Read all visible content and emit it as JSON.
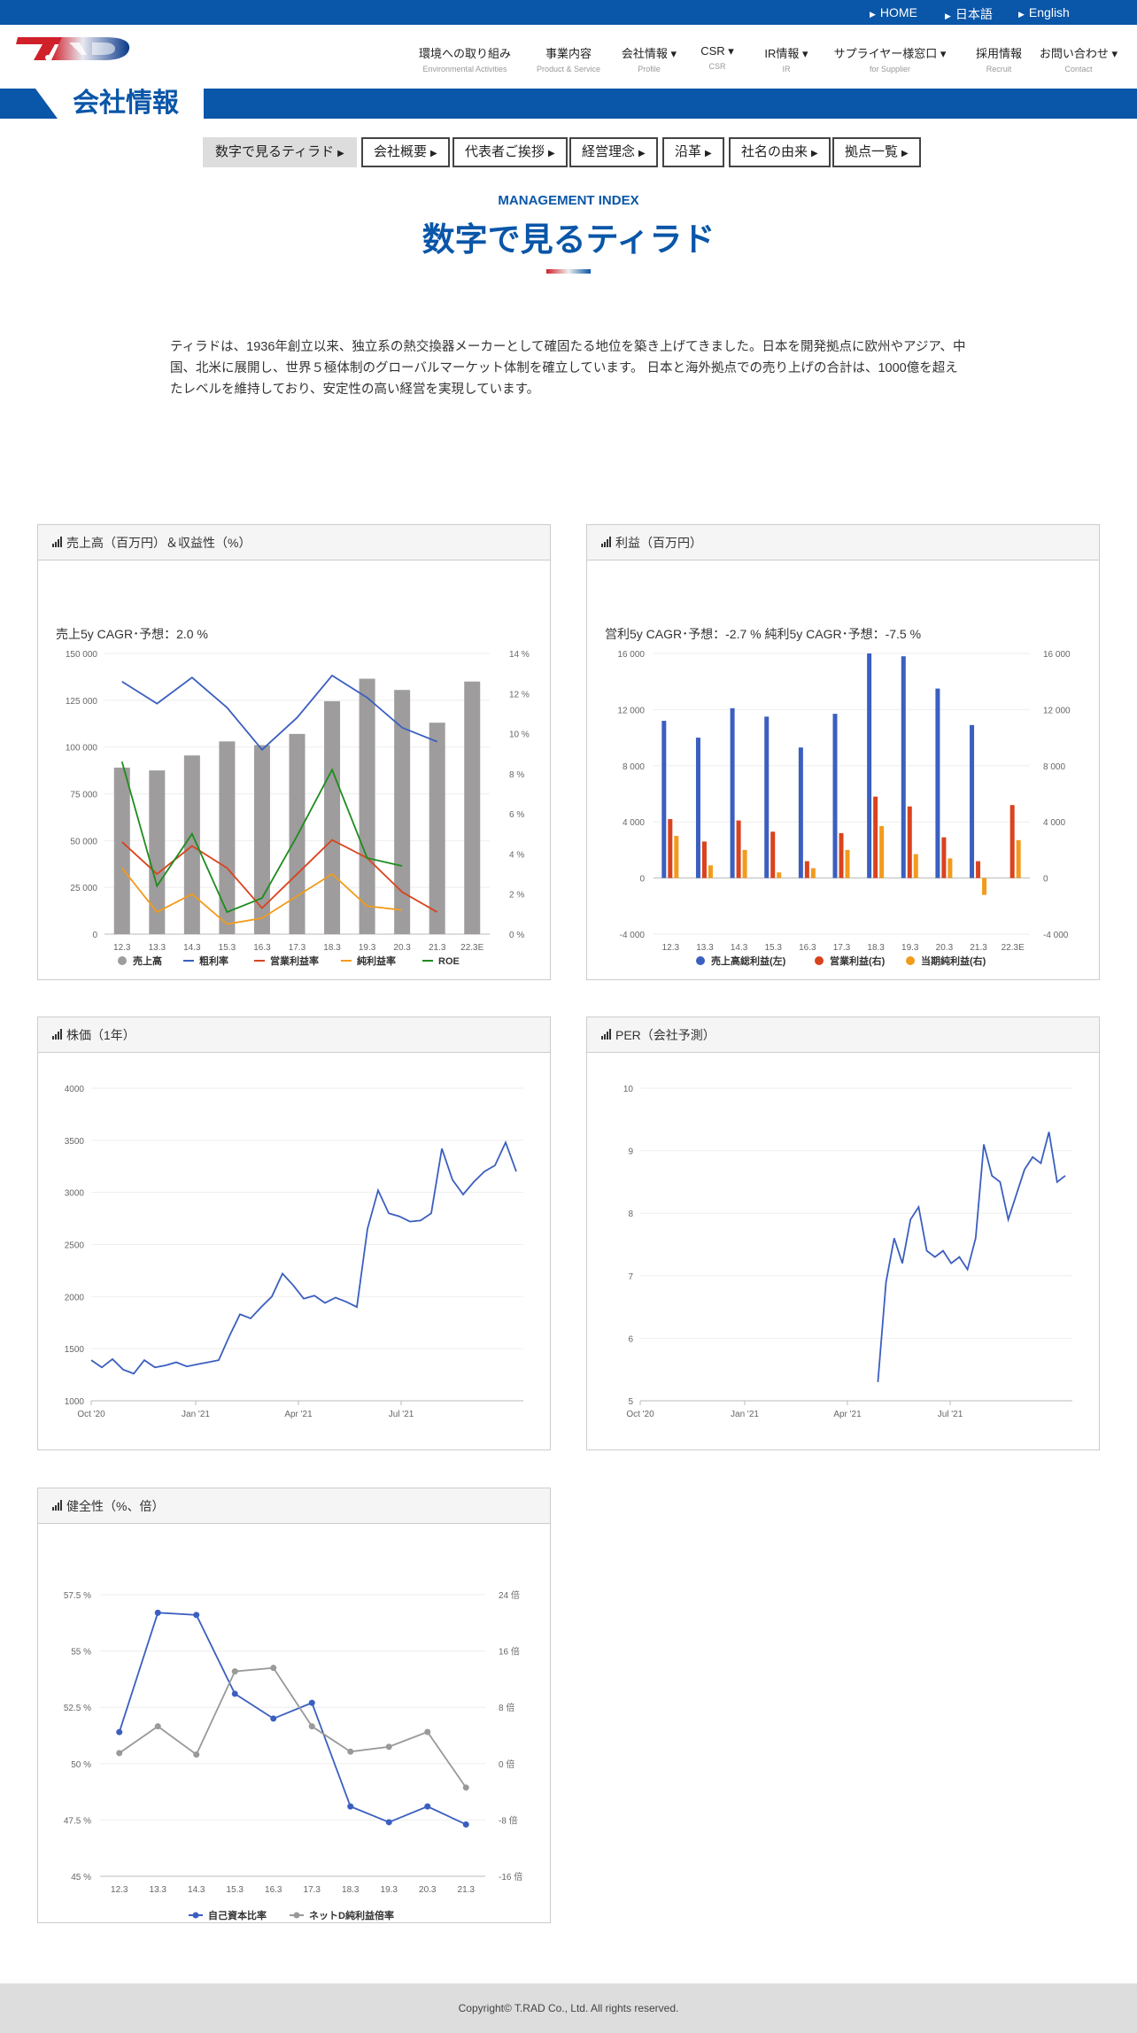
{
  "topbar": {
    "home": "HOME",
    "ja": "日本語",
    "en": "English"
  },
  "nav": [
    {
      "jp": "環境への取り組み",
      "en": "Environmental Activities",
      "dd": false
    },
    {
      "jp": "事業内容",
      "en": "Product & Service",
      "dd": false
    },
    {
      "jp": "会社情報",
      "en": "Profile",
      "dd": true
    },
    {
      "jp": "CSR",
      "en": "CSR",
      "dd": true
    },
    {
      "jp": "IR情報",
      "en": "IR",
      "dd": true
    },
    {
      "jp": "サプライヤー様窓口",
      "en": "for Supplier",
      "dd": true
    },
    {
      "jp": "採用情報",
      "en": "Recruit",
      "dd": false
    },
    {
      "jp": "お問い合わせ",
      "en": "Contact",
      "dd": true
    }
  ],
  "banner_title": "会社情報",
  "subnav": [
    "数字で見るティラド",
    "会社概要",
    "代表者ご挨拶",
    "経営理念",
    "沿革",
    "社名の由来",
    "拠点一覧"
  ],
  "kicker": "MANAGEMENT INDEX",
  "title": "数字で見るティラド",
  "intro": "ティラドは、1936年創立以来、独立系の熱交換器メーカーとして確固たる地位を築き上げてきました。日本を開発拠点に欧州やアジア、中国、北米に展開し、世界５極体制のグローバルマーケット体制を確立しています。 日本と海外拠点での売り上げの合計は、1000億を超えたレベルを維持しており、安定性の高い経営を実現しています。",
  "footer": "Copyright© T.RAD Co., Ltd. All rights reserved.",
  "panels": {
    "sales": "売上高（百万円）＆収益性（%）",
    "profit": "利益（百万円）",
    "price": "株価（1年）",
    "per": "PER（会社予測）",
    "health": "健全性（%、倍）"
  },
  "chart_data": [
    {
      "type": "bar",
      "title": "売上5y CAGR･予想：2.0 %",
      "categories": [
        "12.3",
        "13.3",
        "14.3",
        "15.3",
        "16.3",
        "17.3",
        "18.3",
        "19.3",
        "20.3",
        "21.3",
        "22.3E"
      ],
      "ylim": [
        0,
        150000
      ],
      "y2lim": [
        0,
        14
      ],
      "yticks": [
        "0",
        "25 000",
        "50 000",
        "75 000",
        "100 000",
        "125 000",
        "150 000"
      ],
      "y2ticks": [
        "0 %",
        "2 %",
        "4 %",
        "6 %",
        "8 %",
        "10 %",
        "12 %",
        "14 %"
      ],
      "series": [
        {
          "name": "売上高",
          "type": "bar",
          "axis": "left",
          "color": "#9e9c9c",
          "values": [
            89000,
            87500,
            95500,
            103000,
            101000,
            107000,
            124500,
            136500,
            130500,
            113000,
            135000
          ]
        },
        {
          "name": "粗利率",
          "type": "line",
          "axis": "right",
          "color": "#3b5fc0",
          "values": [
            12.6,
            11.5,
            12.8,
            11.3,
            9.2,
            10.8,
            12.9,
            11.8,
            10.3,
            9.6,
            null
          ]
        },
        {
          "name": "営業利益率",
          "type": "line",
          "axis": "right",
          "color": "#d9431e",
          "values": [
            4.6,
            3.0,
            4.4,
            3.3,
            1.3,
            3.0,
            4.7,
            3.8,
            2.1,
            1.1,
            null
          ]
        },
        {
          "name": "純利益率",
          "type": "line",
          "axis": "right",
          "color": "#f29b1c",
          "values": [
            3.3,
            1.1,
            2.0,
            0.5,
            0.8,
            1.9,
            3.0,
            1.4,
            1.2,
            null,
            null
          ]
        },
        {
          "name": "ROE",
          "type": "line",
          "axis": "right",
          "color": "#1e8c1e",
          "values": [
            8.6,
            2.4,
            5.0,
            1.1,
            1.8,
            4.9,
            8.2,
            3.8,
            3.4,
            null,
            null
          ]
        }
      ]
    },
    {
      "type": "bar",
      "title": "営利5y CAGR･予想：-2.7 % 純利5y CAGR･予想：-7.5 %",
      "categories": [
        "12.3",
        "13.3",
        "14.3",
        "15.3",
        "16.3",
        "17.3",
        "18.3",
        "19.3",
        "20.3",
        "21.3",
        "22.3E"
      ],
      "ylim": [
        -4000,
        16000
      ],
      "yticks": [
        "-4 000",
        "0",
        "4 000",
        "8 000",
        "12 000",
        "16 000"
      ],
      "series": [
        {
          "name": "売上高総利益(左)",
          "color": "#3b5fc0",
          "values": [
            11200,
            10000,
            12100,
            11500,
            9300,
            11700,
            16000,
            15800,
            13500,
            10900,
            null
          ]
        },
        {
          "name": "営業利益(右)",
          "color": "#d9431e",
          "values": [
            4200,
            2600,
            4100,
            3300,
            1200,
            3200,
            5800,
            5100,
            2900,
            1200,
            5200
          ]
        },
        {
          "name": "当期純利益(右)",
          "color": "#f29b1c",
          "values": [
            3000,
            900,
            2000,
            400,
            700,
            2000,
            3700,
            1700,
            1400,
            -1200,
            2700
          ]
        }
      ]
    },
    {
      "type": "line",
      "title": "",
      "xticks": [
        "Oct '20",
        "Jan '21",
        "Apr '21",
        "Jul '21"
      ],
      "ylim": [
        1000,
        4000
      ],
      "yticks": [
        "1000",
        "1500",
        "2000",
        "2500",
        "3000",
        "3500",
        "4000"
      ],
      "series": [
        {
          "name": "",
          "color": "#3b5fc0",
          "values": [
            1390,
            1320,
            1400,
            1300,
            1260,
            1390,
            1320,
            1340,
            1370,
            1330,
            1350,
            1370,
            1390,
            1620,
            1830,
            1790,
            1900,
            2000,
            2220,
            2110,
            1980,
            2010,
            1940,
            1990,
            1950,
            1900,
            2650,
            3020,
            2800,
            2770,
            2720,
            2730,
            2800,
            3420,
            3120,
            2980,
            3100,
            3200,
            3260,
            3480,
            3200
          ]
        }
      ]
    },
    {
      "type": "line",
      "title": "",
      "xticks": [
        "Oct '20",
        "Jan '21",
        "Apr '21",
        "Jul '21"
      ],
      "ylim": [
        5,
        10
      ],
      "yticks": [
        "5",
        "6",
        "7",
        "8",
        "9",
        "10"
      ],
      "series": [
        {
          "name": "",
          "color": "#3b5fc0",
          "values": [
            5.3,
            6.9,
            7.6,
            7.2,
            7.9,
            8.1,
            7.4,
            7.3,
            7.4,
            7.2,
            7.3,
            7.1,
            7.6,
            9.1,
            8.6,
            8.5,
            7.9,
            8.3,
            8.7,
            8.9,
            8.8,
            9.3,
            8.5,
            8.6
          ]
        }
      ]
    },
    {
      "type": "line",
      "title": "",
      "categories": [
        "12.3",
        "13.3",
        "14.3",
        "15.3",
        "16.3",
        "17.3",
        "18.3",
        "19.3",
        "20.3",
        "21.3"
      ],
      "ylim": [
        45,
        57.5
      ],
      "y2lim": [
        -16,
        24
      ],
      "yticks": [
        "45 %",
        "47.5 %",
        "50 %",
        "52.5 %",
        "55 %",
        "57.5 %"
      ],
      "y2ticks": [
        "-16 倍",
        "-8 倍",
        "0 倍",
        "8 倍",
        "16 倍",
        "24 倍"
      ],
      "series": [
        {
          "name": "自己資本比率",
          "axis": "left",
          "color": "#3b5fc0",
          "values": [
            51.4,
            56.7,
            56.6,
            53.1,
            52.0,
            52.7,
            48.1,
            47.4,
            48.1,
            47.3
          ]
        },
        {
          "name": "ネットD純利益倍率",
          "axis": "right",
          "color": "#999999",
          "values": [
            1.5,
            5.3,
            1.3,
            13.1,
            13.6,
            5.3,
            1.7,
            2.4,
            4.5,
            -3.4
          ]
        }
      ]
    }
  ]
}
